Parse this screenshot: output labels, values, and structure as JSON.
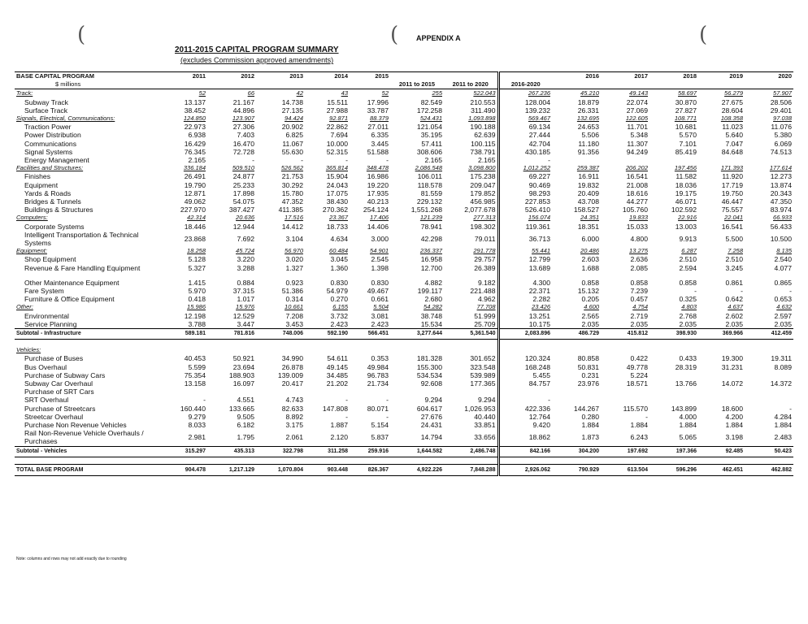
{
  "header": {
    "appendix": "APPENDIX A",
    "title": "2011-2015 CAPITAL PROGRAM SUMMARY",
    "subtitle": "(excludes Commission approved amendments)"
  },
  "table": {
    "heading": "BASE CAPITAL PROGRAM",
    "unit": "$ millions",
    "columns": [
      "2011",
      "2012",
      "2013",
      "2014",
      "2015",
      "2011 to 2015",
      "2011 to 2020",
      "2016-2020",
      "2016",
      "2017",
      "2018",
      "2019",
      "2020"
    ],
    "infrastructure": {
      "groups": [
        {
          "label": "Track:",
          "cells": [
            "52",
            "66",
            "42",
            "43",
            "52",
            "255",
            "522.043",
            "267.236",
            "45.210",
            "49.143",
            "58.697",
            "56.279",
            "57.907"
          ],
          "items": [
            {
              "label": "Subway Track",
              "cells": [
                "13.137",
                "21.167",
                "14.738",
                "15.511",
                "17.996",
                "82.549",
                "210.553",
                "128.004",
                "18.879",
                "22.074",
                "30.870",
                "27.675",
                "28.506"
              ]
            },
            {
              "label": "Surface Track",
              "cells": [
                "38.452",
                "44.896",
                "27.135",
                "27.988",
                "33.787",
                "172.258",
                "311.490",
                "139.232",
                "26.331",
                "27.069",
                "27.827",
                "28.604",
                "29.401"
              ]
            }
          ]
        },
        {
          "label": "Signals, Electrical, Communications:",
          "cells": [
            "124.850",
            "123.907",
            "94.424",
            "92.871",
            "88.379",
            "524.431",
            "1,093.898",
            "569.467",
            "132.695",
            "122.605",
            "108.771",
            "108.358",
            "97.038"
          ],
          "items": [
            {
              "label": "Traction Power",
              "cells": [
                "22.973",
                "27.306",
                "20.902",
                "22.862",
                "27.011",
                "121.054",
                "190.188",
                "69.134",
                "24.653",
                "11.701",
                "10.681",
                "11.023",
                "11.076"
              ]
            },
            {
              "label": "Power Distribution",
              "cells": [
                "6.938",
                "7.403",
                "6.825",
                "7.694",
                "6.335",
                "35.195",
                "62.639",
                "27.444",
                "5.506",
                "5.348",
                "5.570",
                "5.640",
                "5.380"
              ]
            },
            {
              "label": "Communications",
              "cells": [
                "16.429",
                "16.470",
                "11.067",
                "10.000",
                "3.445",
                "57.411",
                "100.115",
                "42.704",
                "11.180",
                "11.307",
                "7.101",
                "7.047",
                "6.069"
              ]
            },
            {
              "label": "Signal Systems",
              "cells": [
                "76.345",
                "72.728",
                "55.630",
                "52.315",
                "51.588",
                "308.606",
                "738.791",
                "430.185",
                "91.356",
                "94.249",
                "85.419",
                "84.648",
                "74.513"
              ]
            },
            {
              "label": "Energy Management",
              "cells": [
                "2.165",
                "-",
                "-",
                "-",
                "-",
                "2.165",
                "2.165",
                "-",
                null,
                null,
                null,
                null,
                null
              ]
            }
          ]
        },
        {
          "label": "Facilities and Structures:",
          "cells": [
            "336.184",
            "509.510",
            "526.562",
            "365.814",
            "348.478",
            "2,086.548",
            "3,098.800",
            "1,012.252",
            "259.387",
            "206.202",
            "197.456",
            "171.393",
            "177.614"
          ],
          "items": [
            {
              "label": "Finishes",
              "cells": [
                "26.491",
                "24.877",
                "21.753",
                "15.904",
                "16.986",
                "106.011",
                "175.238",
                "69.227",
                "16.911",
                "16.541",
                "11.582",
                "11.920",
                "12.273"
              ]
            },
            {
              "label": "Equipment",
              "cells": [
                "19.790",
                "25.233",
                "30.292",
                "24.043",
                "19.220",
                "118.578",
                "209.047",
                "90.469",
                "19.832",
                "21.008",
                "18.036",
                "17.719",
                "13.874"
              ]
            },
            {
              "label": "Yards & Roads",
              "cells": [
                "12.871",
                "17.898",
                "15.780",
                "17.075",
                "17.935",
                "81.559",
                "179.852",
                "98.293",
                "20.409",
                "18.616",
                "19.175",
                "19.750",
                "20.343"
              ]
            },
            {
              "label": "Bridges & Tunnels",
              "cells": [
                "49.062",
                "54.075",
                "47.352",
                "38.430",
                "40.213",
                "229.132",
                "456.985",
                "227.853",
                "43.708",
                "44.277",
                "46.071",
                "46.447",
                "47.350"
              ]
            },
            {
              "label": "Buildings & Structures",
              "cells": [
                "227.970",
                "387.427",
                "411.385",
                "270.362",
                "254.124",
                "1,551.268",
                "2,077.678",
                "526.410",
                "158.527",
                "105.760",
                "102.592",
                "75.557",
                "83.974"
              ]
            }
          ]
        },
        {
          "label": "Computers:",
          "cells": [
            "42.314",
            "20.636",
            "17.516",
            "23.367",
            "17.406",
            "121.239",
            "277.313",
            "156.074",
            "24.351",
            "19.833",
            "22.916",
            "22.041",
            "66.933"
          ],
          "items": [
            {
              "label": "Corporate Systems",
              "cells": [
                "18.446",
                "12.944",
                "14.412",
                "18.733",
                "14.406",
                "78.941",
                "198.302",
                "119.361",
                "18.351",
                "15.033",
                "13.003",
                "16.541",
                "56.433"
              ]
            },
            {
              "label": "Intelligent Transportation & Technical Systems",
              "cells": [
                "23.868",
                "7.692",
                "3.104",
                "4.634",
                "3.000",
                "42.298",
                "79.011",
                "36.713",
                "6.000",
                "4.800",
                "9.913",
                "5.500",
                "10.500"
              ]
            }
          ]
        },
        {
          "label": "Equipment:",
          "cells": [
            "18.258",
            "45.724",
            "56.970",
            "60.484",
            "54.901",
            "236.337",
            "291.778",
            "55.441",
            "20.486",
            "13.275",
            "6.287",
            "7.258",
            "8.135"
          ],
          "items": [
            {
              "label": "Shop Equipment",
              "cells": [
                "5.128",
                "3.220",
                "3.020",
                "3.045",
                "2.545",
                "16.958",
                "29.757",
                "12.799",
                "2.603",
                "2.636",
                "2.510",
                "2.510",
                "2.540"
              ]
            },
            {
              "label": "Revenue & Fare Handling Equipment",
              "cells": [
                "5.327",
                "3.288",
                "1.327",
                "1.360",
                "1.398",
                "12.700",
                "26.389",
                "13.689",
                "1.688",
                "2.085",
                "2.594",
                "3.245",
                "4.077"
              ]
            },
            {
              "label": "Other Maintenance Equipment",
              "cells": [
                "1.415",
                "0.884",
                "0.923",
                "0.830",
                "0.830",
                "4.882",
                "9.182",
                "4.300",
                "0.858",
                "0.858",
                "0.858",
                "0.861",
                "0.865"
              ]
            },
            {
              "label": "Fare System",
              "cells": [
                "5.970",
                "37.315",
                "51.386",
                "54.979",
                "49.467",
                "199.117",
                "221.488",
                "22.371",
                "15.132",
                "7.239",
                "-",
                "-",
                "-"
              ]
            },
            {
              "label": "Furniture & Office Equipment",
              "cells": [
                "0.418",
                "1.017",
                "0.314",
                "0.270",
                "0.661",
                "2.680",
                "4.962",
                "2.282",
                "0.205",
                "0.457",
                "0.325",
                "0.642",
                "0.653"
              ]
            }
          ]
        },
        {
          "label": "Other:",
          "cells": [
            "15.986",
            "15.976",
            "10.661",
            "6.155",
            "5.504",
            "54.282",
            "77.708",
            "23.426",
            "4.600",
            "4.754",
            "4.803",
            "4.637",
            "4.632"
          ],
          "items": [
            {
              "label": "Environmental",
              "cells": [
                "12.198",
                "12.529",
                "7.208",
                "3.732",
                "3.081",
                "38.748",
                "51.999",
                "13.251",
                "2.565",
                "2.719",
                "2.768",
                "2.602",
                "2.597"
              ]
            },
            {
              "label": "Service Planning",
              "cells": [
                "3.788",
                "3.447",
                "3.453",
                "2.423",
                "2.423",
                "15.534",
                "25.709",
                "10.175",
                "2.035",
                "2.035",
                "2.035",
                "2.035",
                "2.035"
              ]
            }
          ]
        }
      ],
      "subtotal": {
        "label": "Subtotal - Infrastructure",
        "cells": [
          "589.181",
          "781.816",
          "748.006",
          "592.190",
          "566.451",
          "3,277.644",
          "5,361.540",
          "2,083.896",
          "486.729",
          "415.812",
          "398.930",
          "369.966",
          "412.459"
        ]
      }
    },
    "vehicles": {
      "label": "Vehicles:",
      "items": [
        {
          "label": "Purchase of Buses",
          "cells": [
            "40.453",
            "50.921",
            "34.990",
            "54.611",
            "0.353",
            "181.328",
            "301.652",
            "120.324",
            "80.858",
            "0.422",
            "0.433",
            "19.300",
            "19.311"
          ]
        },
        {
          "label": "Bus Overhaul",
          "cells": [
            "5.599",
            "23.694",
            "26.878",
            "49.145",
            "49.984",
            "155.300",
            "323.548",
            "168.248",
            "50.831",
            "49.778",
            "28.319",
            "31.231",
            "8.089"
          ]
        },
        {
          "label": "Purchase of Subway Cars",
          "cells": [
            "75.354",
            "188.903",
            "139.009",
            "34.485",
            "96.783",
            "534.534",
            "539.989",
            "5.455",
            "0.231",
            "5.224",
            null,
            null,
            null
          ]
        },
        {
          "label": "Subway Car Overhaul",
          "cells": [
            "13.158",
            "16.097",
            "20.417",
            "21.202",
            "21.734",
            "92.608",
            "177.365",
            "84.757",
            "23.976",
            "18.571",
            "13.766",
            "14.072",
            "14.372"
          ]
        },
        {
          "label": "Purchase of SRT Cars",
          "cells": [
            null,
            null,
            null,
            null,
            null,
            null,
            null,
            null,
            null,
            null,
            null,
            null,
            null
          ]
        },
        {
          "label": "SRT Overhaul",
          "cells": [
            "-",
            "4.551",
            "4.743",
            "-",
            "-",
            "9.294",
            "9.294",
            "-",
            null,
            null,
            null,
            null,
            null
          ]
        },
        {
          "label": "Purchase of Streetcars",
          "cells": [
            "160.440",
            "133.665",
            "82.633",
            "147.808",
            "80.071",
            "604.617",
            "1,026.953",
            "422.336",
            "144.267",
            "115.570",
            "143.899",
            "18.600",
            "-"
          ]
        },
        {
          "label": "Streetcar Overhaul",
          "cells": [
            "9.279",
            "9.505",
            "8.892",
            "-",
            "-",
            "27.676",
            "40.440",
            "12.764",
            "0.280",
            "-",
            "4.000",
            "4.200",
            "4.284"
          ]
        },
        {
          "label": "Purchase Non Revenue Vehicles",
          "cells": [
            "8.033",
            "6.182",
            "3.175",
            "1.887",
            "5.154",
            "24.431",
            "33.851",
            "9.420",
            "1.884",
            "1.884",
            "1.884",
            "1.884",
            "1.884"
          ]
        },
        {
          "label": "Rail Non-Revenue Vehicle Overhauls / Purchases",
          "cells": [
            "2.981",
            "1.795",
            "2.061",
            "2.120",
            "5.837",
            "14.794",
            "33.656",
            "18.862",
            "1.873",
            "6.243",
            "5.065",
            "3.198",
            "2.483"
          ]
        }
      ],
      "subtotal": {
        "label": "Subtotal - Vehicles",
        "cells": [
          "315.297",
          "435.313",
          "322.798",
          "311.258",
          "259.916",
          "1,644.582",
          "2,486.748",
          "842.166",
          "304.200",
          "197.692",
          "197.366",
          "92.485",
          "50.423"
        ]
      }
    },
    "total": {
      "label": "TOTAL BASE PROGRAM",
      "cells": [
        "904.478",
        "1,217.129",
        "1,070.804",
        "903.448",
        "826.367",
        "4,922.226",
        "7,848.288",
        "2,926.062",
        "790.929",
        "613.504",
        "596.296",
        "462.451",
        "462.882"
      ]
    }
  },
  "note": "Note: columns and rows may not add exactly due to rounding"
}
